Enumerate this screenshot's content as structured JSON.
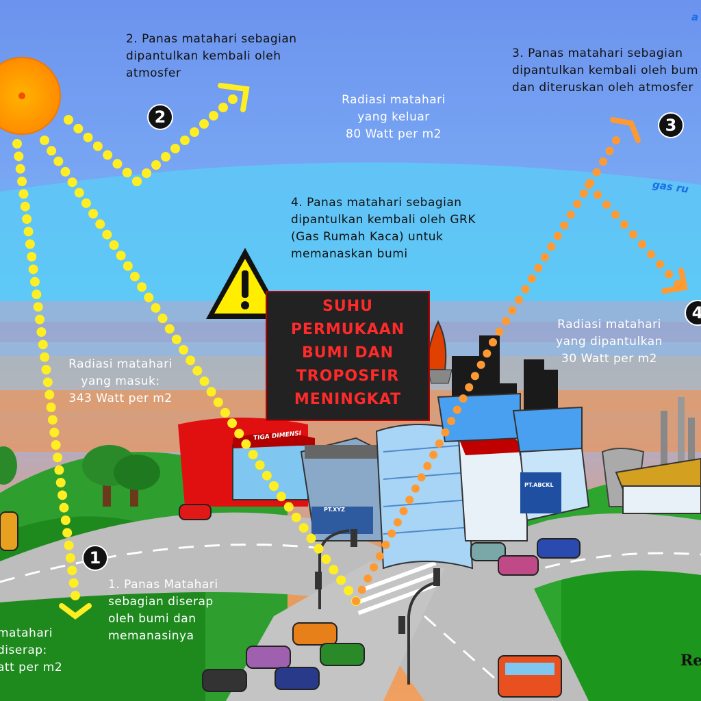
{
  "labels": {
    "step1": "1. Panas Matahari\nsebagian diserap\noleh bumi dan\nmemanasinya",
    "step2": "2. Panas matahari sebagian\ndipantulkan kembali oleh\natmosfer",
    "step3": "3. Panas matahari sebagian\ndipantulkan kembali oleh bum\ndan diteruskan oleh atmosfer",
    "step4": "4. Panas matahari sebagian\ndipantulkan kembali oleh GRK\n(Gas Rumah Kaca) untuk\nmemanaskan bumi",
    "radiasi_keluar": "Radiasi matahari\nyang keluar\n80 Watt per m2",
    "radiasi_dipantulkan": "Radiasi matahari\nyang dipantulkan\n30 Watt per m2",
    "radiasi_masuk": "Radiasi matahari\nyang masuk:\n343 Watt per m2",
    "radiasi_diserap": " matahari\ndiserap:\natt per m2",
    "warning": "SUHU\nPERMUKAAN\nBUMI DAN\nTROPOSFIR\nMENINGKAT",
    "gas": "gas ru",
    "top_right": "a",
    "corner": "Re"
  },
  "badges": {
    "b1": "1",
    "b2": "2",
    "b3": "3",
    "b4": "4"
  },
  "buildings": {
    "tiga": "TIGA DIMENSI",
    "ptxyz": "PT.XYZ",
    "ptabc": "PT.ABCKL"
  },
  "colors": {
    "sky_top": "#6f9bf0",
    "sky_light": "#5fc8f5",
    "sun": "#ff9a00",
    "ray": "#ffee22",
    "reflect": "#ff9a33",
    "warning_text": "#ff2a2a"
  }
}
